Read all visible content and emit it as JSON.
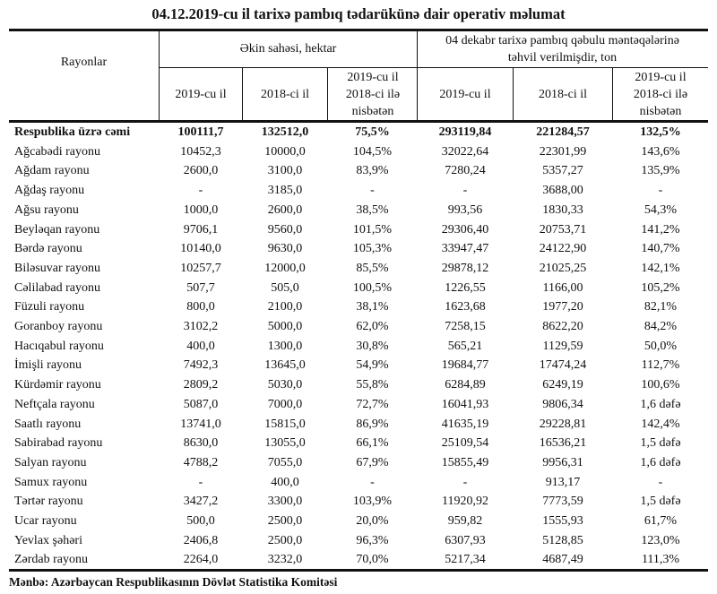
{
  "title": "04.12.2019-cu il tarixə pambıq tədarükünə dair operativ məlumat",
  "header": {
    "col_district": "Rayonlar",
    "group_area": "Əkin sahəsi, hektar",
    "group_delivered": "04 dekabr tarixə pambıq qəbulu məntəqələrinə təhvil verilmişdir, ton",
    "sub": [
      "2019-cu il",
      "2018-ci il",
      "2019-cu il 2018-ci ilə nisbətən",
      "2019-cu il",
      "2018-ci il",
      "2019-cu il 2018-ci ilə nisbətən"
    ]
  },
  "total": [
    "Respublika üzrə cəmi",
    "100111,7",
    "132512,0",
    "75,5%",
    "293119,84",
    "221284,57",
    "132,5%"
  ],
  "rows": [
    [
      "Ağcabədi rayonu",
      "10452,3",
      "10000,0",
      "104,5%",
      "32022,64",
      "22301,99",
      "143,6%"
    ],
    [
      "Ağdam rayonu",
      "2600,0",
      "3100,0",
      "83,9%",
      "7280,24",
      "5357,27",
      "135,9%"
    ],
    [
      "Ağdaş rayonu",
      "-",
      "3185,0",
      "-",
      "-",
      "3688,00",
      "-"
    ],
    [
      "Ağsu rayonu",
      "1000,0",
      "2600,0",
      "38,5%",
      "993,56",
      "1830,33",
      "54,3%"
    ],
    [
      "Beyləqan rayonu",
      "9706,1",
      "9560,0",
      "101,5%",
      "29306,40",
      "20753,71",
      "141,2%"
    ],
    [
      "Bərdə rayonu",
      "10140,0",
      "9630,0",
      "105,3%",
      "33947,47",
      "24122,90",
      "140,7%"
    ],
    [
      "Biləsuvar rayonu",
      "10257,7",
      "12000,0",
      "85,5%",
      "29878,12",
      "21025,25",
      "142,1%"
    ],
    [
      "Cəlilabad rayonu",
      "507,7",
      "505,0",
      "100,5%",
      "1226,55",
      "1166,00",
      "105,2%"
    ],
    [
      "Füzuli rayonu",
      "800,0",
      "2100,0",
      "38,1%",
      "1623,68",
      "1977,20",
      "82,1%"
    ],
    [
      "Goranboy rayonu",
      "3102,2",
      "5000,0",
      "62,0%",
      "7258,15",
      "8622,20",
      "84,2%"
    ],
    [
      "Hacıqabul rayonu",
      "400,0",
      "1300,0",
      "30,8%",
      "565,21",
      "1129,59",
      "50,0%"
    ],
    [
      "İmişli rayonu",
      "7492,3",
      "13645,0",
      "54,9%",
      "19684,77",
      "17474,24",
      "112,7%"
    ],
    [
      "Kürdəmir rayonu",
      "2809,2",
      "5030,0",
      "55,8%",
      "6284,89",
      "6249,19",
      "100,6%"
    ],
    [
      "Neftçala rayonu",
      "5087,0",
      "7000,0",
      "72,7%",
      "16041,93",
      "9806,34",
      "1,6 dəfə"
    ],
    [
      "Saatlı rayonu",
      "13741,0",
      "15815,0",
      "86,9%",
      "41635,19",
      "29228,81",
      "142,4%"
    ],
    [
      "Sabirabad rayonu",
      "8630,0",
      "13055,0",
      "66,1%",
      "25109,54",
      "16536,21",
      "1,5 dəfə"
    ],
    [
      "Salyan rayonu",
      "4788,2",
      "7055,0",
      "67,9%",
      "15855,49",
      "9956,31",
      "1,6 dəfə"
    ],
    [
      "Samux rayonu",
      "-",
      "400,0",
      "-",
      "-",
      "913,17",
      "-"
    ],
    [
      "Tərtər rayonu",
      "3427,2",
      "3300,0",
      "103,9%",
      "11920,92",
      "7773,59",
      "1,5 dəfə"
    ],
    [
      "Ucar rayonu",
      "500,0",
      "2500,0",
      "20,0%",
      "959,82",
      "1555,93",
      "61,7%"
    ],
    [
      "Yevlax şəhəri",
      "2406,8",
      "2500,0",
      "96,3%",
      "6307,93",
      "5128,85",
      "123,0%"
    ],
    [
      "Zərdab rayonu",
      "2264,0",
      "3232,0",
      "70,0%",
      "5217,34",
      "4687,49",
      "111,3%"
    ]
  ],
  "source": "Mənbə: Azərbaycan Respublikasının Dövlət Statistika Komitəsi"
}
